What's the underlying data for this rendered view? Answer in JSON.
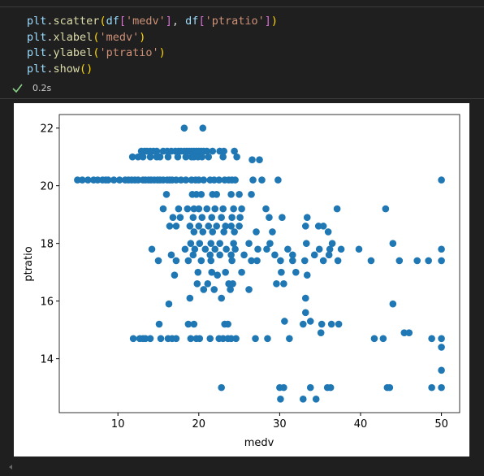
{
  "cell": {
    "code": [
      [
        "plt",
        ".",
        "scatter",
        "(",
        "df",
        "[",
        "'medv'",
        "]",
        ", ",
        "df",
        "[",
        "'ptratio'",
        "]",
        ")"
      ],
      [
        "plt",
        ".",
        "xlabel",
        "(",
        "'medv'",
        ")"
      ],
      [
        "plt",
        ".",
        "ylabel",
        "(",
        "'ptratio'",
        ")"
      ],
      [
        "plt",
        ".",
        "show",
        "()"
      ]
    ],
    "status": "0.2s"
  },
  "chart_data": {
    "type": "scatter",
    "xlabel": "medv",
    "ylabel": "ptratio",
    "color": "#1f77b4",
    "xlim": [
      2.75,
      52.25
    ],
    "ylim": [
      12.13,
      22.47
    ],
    "xticks": [
      10,
      20,
      30,
      40,
      50
    ],
    "yticks": [
      14,
      16,
      18,
      20,
      22
    ],
    "x": [
      18.2,
      20.5,
      12.9,
      13.3,
      13.6,
      14.0,
      14.4,
      14.8,
      15.6,
      16.1,
      16.6,
      17.1,
      17.5,
      17.8,
      18.2,
      18.5,
      18.8,
      19.1,
      19.4,
      19.7,
      20.0,
      20.3,
      20.6,
      21.0,
      21.7,
      22.6,
      23.1,
      24.4,
      11.8,
      12.5,
      13.1,
      14.0,
      14.8,
      15.2,
      16.2,
      17.4,
      18.4,
      19.1,
      19.4,
      19.9,
      20.4,
      21.2,
      23.0,
      24.7,
      26.6,
      27.5,
      5.0,
      5.6,
      6.3,
      7.0,
      7.5,
      8.1,
      8.5,
      8.8,
      9.5,
      10.2,
      10.9,
      11.3,
      11.7,
      12.1,
      12.5,
      13.1,
      13.4,
      13.8,
      14.1,
      14.5,
      14.9,
      15.2,
      15.6,
      16.1,
      16.4,
      16.7,
      17.2,
      17.8,
      18.4,
      19.1,
      19.6,
      20.0,
      20.6,
      21.4,
      21.9,
      22.5,
      23.2,
      23.7,
      24.1,
      24.5,
      26.7,
      27.8,
      29.8,
      50.0,
      16.0,
      19.2,
      19.7,
      20.3,
      21.7,
      22.2,
      24.0,
      25.0,
      26.5,
      15.6,
      17.5,
      18.6,
      19.4,
      20.0,
      21.0,
      22.0,
      23.0,
      24.3,
      25.3,
      28.3,
      37.1,
      43.1,
      16.8,
      17.7,
      19.3,
      20.4,
      21.6,
      22.8,
      24.1,
      25.1,
      28.7,
      30.3,
      33.4,
      16.4,
      17.2,
      18.9,
      20.0,
      21.2,
      22.2,
      23.3,
      24.0,
      25.0,
      33.2,
      34.8,
      35.4,
      19.4,
      20.5,
      21.7,
      23.1,
      24.4,
      27.1,
      29.1,
      36.0,
      19.0,
      20.1,
      21.5,
      22.6,
      24.3,
      26.2,
      28.8,
      33.3,
      36.5,
      44.0,
      14.2,
      18.3,
      19.5,
      20.8,
      22.0,
      23.4,
      24.5,
      27.3,
      28.4,
      31.0,
      34.9,
      36.2,
      37.6,
      39.8,
      50.0,
      16.6,
      19.3,
      21.4,
      22.6,
      24.0,
      25.6,
      29.4,
      31.6,
      34.3,
      36.1,
      15.0,
      17.2,
      18.7,
      20.3,
      21.5,
      24.1,
      26.5,
      27.2,
      30.1,
      31.6,
      33.1,
      35.4,
      37.2,
      41.3,
      44.8,
      47.0,
      48.4,
      50.0,
      19.9,
      21.6,
      23.3,
      25.3,
      30.2,
      32.0,
      17.0,
      22.3,
      33.4,
      19.8,
      21.1,
      23.7,
      24.2,
      29.6,
      30.5,
      20.6,
      21.9,
      23.9,
      26.2,
      18.9,
      22.8,
      33.2,
      16.3,
      44.0,
      33.2,
      30.6,
      33.8,
      15.1,
      18.7,
      19.4,
      23.2,
      23.6,
      32.9,
      35.2,
      36.4,
      37.3,
      35.1,
      45.4,
      46.0,
      11.9,
      12.7,
      13.1,
      13.4,
      14.0,
      15.3,
      16.2,
      16.7,
      17.2,
      19.0,
      19.7,
      20.1,
      21.4,
      22.5,
      23.0,
      23.6,
      24.0,
      24.6,
      27.0,
      28.5,
      31.2,
      41.7,
      42.8,
      48.8,
      50.0,
      50.0,
      50.0,
      22.8,
      30.0,
      30.5,
      33.8,
      35.9,
      36.3,
      43.3,
      43.6,
      48.8,
      50.0,
      30.1,
      32.9,
      34.5
    ],
    "values": [
      22,
      22,
      21.2,
      21.2,
      21.2,
      21.2,
      21.2,
      21.2,
      21.2,
      21.2,
      21.2,
      21.2,
      21.2,
      21.2,
      21.2,
      21.2,
      21.2,
      21.2,
      21.2,
      21.2,
      21.2,
      21.2,
      21.2,
      21.2,
      21.2,
      21.2,
      21.2,
      21.2,
      21,
      21,
      21,
      21,
      21,
      21,
      21,
      21,
      21,
      21,
      21,
      21,
      21,
      21,
      21,
      21,
      20.9,
      20.9,
      20.2,
      20.2,
      20.2,
      20.2,
      20.2,
      20.2,
      20.2,
      20.2,
      20.2,
      20.2,
      20.2,
      20.2,
      20.2,
      20.2,
      20.2,
      20.2,
      20.2,
      20.2,
      20.2,
      20.2,
      20.2,
      20.2,
      20.2,
      20.2,
      20.2,
      20.2,
      20.2,
      20.2,
      20.2,
      20.2,
      20.2,
      20.2,
      20.2,
      20.2,
      20.2,
      20.2,
      20.2,
      20.2,
      20.2,
      20.2,
      20.2,
      20.2,
      20.2,
      20.2,
      19.7,
      19.7,
      19.7,
      19.7,
      19.7,
      19.7,
      19.7,
      19.7,
      19.7,
      19.2,
      19.2,
      19.2,
      19.2,
      19.2,
      19.2,
      19.2,
      19.2,
      19.2,
      19.2,
      19.2,
      19.2,
      19.2,
      18.9,
      18.9,
      18.9,
      18.9,
      18.9,
      18.9,
      18.9,
      18.9,
      18.9,
      18.9,
      18.9,
      18.6,
      18.6,
      18.6,
      18.6,
      18.6,
      18.6,
      18.6,
      18.6,
      18.6,
      18.6,
      18.6,
      18.6,
      18.4,
      18.4,
      18.4,
      18.4,
      18.4,
      18.4,
      18.4,
      18.4,
      18,
      18,
      18,
      18,
      18,
      18,
      18,
      18,
      18,
      18,
      17.8,
      17.8,
      17.8,
      17.8,
      17.8,
      17.8,
      17.8,
      17.8,
      17.8,
      17.8,
      17.8,
      17.8,
      17.8,
      17.8,
      17.8,
      17.6,
      17.6,
      17.6,
      17.6,
      17.6,
      17.6,
      17.6,
      17.6,
      17.6,
      17.6,
      17.4,
      17.4,
      17.4,
      17.4,
      17.4,
      17.4,
      17.4,
      17.4,
      17.4,
      17.4,
      17.4,
      17.4,
      17.4,
      17.4,
      17.4,
      17.4,
      17.4,
      17.4,
      17,
      17,
      17,
      17,
      17,
      17,
      16.9,
      16.9,
      16.9,
      16.6,
      16.6,
      16.6,
      16.6,
      16.6,
      16.6,
      16.4,
      16.4,
      16.4,
      16.4,
      16.1,
      16.1,
      16.1,
      15.9,
      15.9,
      15.6,
      15.3,
      15.3,
      15.2,
      15.2,
      15.2,
      15.2,
      15.2,
      15.2,
      15.2,
      15.2,
      15.2,
      14.9,
      14.9,
      14.9,
      14.7,
      14.7,
      14.7,
      14.7,
      14.7,
      14.7,
      14.7,
      14.7,
      14.7,
      14.7,
      14.7,
      14.7,
      14.7,
      14.7,
      14.7,
      14.7,
      14.7,
      14.7,
      14.7,
      14.7,
      14.7,
      14.7,
      14.7,
      14.7,
      14.7,
      14.4,
      13.6,
      13,
      13,
      13,
      13,
      13,
      13,
      13,
      13,
      13,
      13,
      12.6,
      12.6,
      12.6
    ]
  }
}
